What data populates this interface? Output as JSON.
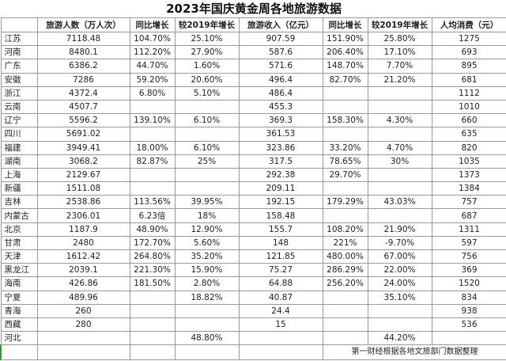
{
  "title": "2023年国庆黄金周各地旅游数据",
  "columns": [
    "",
    "旅游人数（万人次）",
    "同比增长",
    "较2019年增长",
    "旅游收入（亿元）",
    "同比增长",
    "较2019年增长",
    "人均消费（元）"
  ],
  "rows": [
    [
      "江苏",
      "7118.48",
      "104.70%",
      "25.10%",
      "907.59",
      "151.90%",
      "25.80%",
      "1275"
    ],
    [
      "河南",
      "8480.1",
      "112.20%",
      "27.90%",
      "587.6",
      "206.40%",
      "17.10%",
      "693"
    ],
    [
      "广东",
      "6386.2",
      "44.70%",
      "1.60%",
      "571.6",
      "148.70%",
      "7.70%",
      "895"
    ],
    [
      "安徽",
      "7286",
      "59.20%",
      "20.60%",
      "496.4",
      "82.70%",
      "21.20%",
      "681"
    ],
    [
      "浙江",
      "4372.4",
      "6.80%",
      "5.10%",
      "486.4",
      "",
      "",
      "1112"
    ],
    [
      "云南",
      "4507.7",
      "",
      "",
      "455.3",
      "",
      "",
      "1010"
    ],
    [
      "辽宁",
      "5596.2",
      "139.10%",
      "6.10%",
      "369.3",
      "158.30%",
      "4.30%",
      "660"
    ],
    [
      "四川",
      "5691.02",
      "",
      "",
      "361.53",
      "",
      "",
      "635"
    ],
    [
      "福建",
      "3949.41",
      "18.00%",
      "6.10%",
      "323.86",
      "33.20%",
      "4.70%",
      "820"
    ],
    [
      "湖南",
      "3068.2",
      "82.87%",
      "25%",
      "317.5",
      "78.65%",
      "30%",
      "1035"
    ],
    [
      "上海",
      "2129.67",
      "",
      "",
      "292.38",
      "29.70%",
      "",
      "1373"
    ],
    [
      "新疆",
      "1511.08",
      "",
      "",
      "209.11",
      "",
      "",
      "1384"
    ],
    [
      "吉林",
      "2538.86",
      "113.56%",
      "39.95%",
      "192.15",
      "179.29%",
      "43.03%",
      "757"
    ],
    [
      "内蒙古",
      "2306.01",
      "6.23倍",
      "18%",
      "158.48",
      "",
      "",
      "687"
    ],
    [
      "北京",
      "1187.9",
      "48.90%",
      "12.90%",
      "155.7",
      "108.20%",
      "21.90%",
      "1311"
    ],
    [
      "甘肃",
      "2480",
      "172.70%",
      "5.60%",
      "148",
      "221%",
      "-9.70%",
      "597"
    ],
    [
      "天津",
      "1612.42",
      "264.80%",
      "35.20%",
      "121.85",
      "480.00%",
      "67.00%",
      "756"
    ],
    [
      "黑龙江",
      "2039.1",
      "221.30%",
      "15.90%",
      "75.27",
      "286.29%",
      "22.00%",
      "369"
    ],
    [
      "海南",
      "426.86",
      "181.50%",
      "2.80%",
      "64.88",
      "256.20%",
      "24.00%",
      "1520"
    ],
    [
      "宁夏",
      "489.96",
      "",
      "18.82%",
      "40.87",
      "",
      "35.10%",
      "834"
    ],
    [
      "青海",
      "260",
      "",
      "",
      "24.4",
      "",
      "",
      "938"
    ],
    [
      "西藏",
      "280",
      "",
      "",
      "15",
      "",
      "",
      "536"
    ],
    [
      "河北",
      "",
      "",
      "48.80%",
      "",
      "",
      "44.20%",
      ""
    ]
  ],
  "footer_note": "第一财经根据各地文旅部门数据整理"
}
